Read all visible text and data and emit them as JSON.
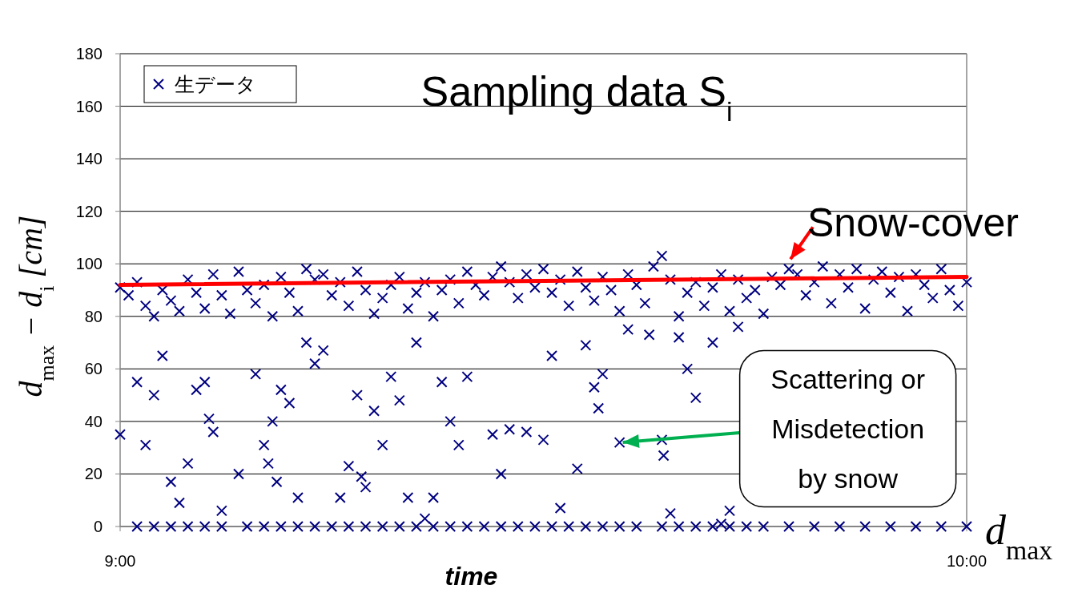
{
  "chart_data": {
    "type": "scatter",
    "title": "Sampling data S$_{i}$",
    "xlabel": "time",
    "ylabel": "d$_{max}$ − d$_{i}$ [cm]",
    "xlim": [
      9,
      10
    ],
    "xticks": [
      {
        "value": 9,
        "label": "9:00"
      },
      {
        "value": 10,
        "label": "10:00"
      }
    ],
    "ylim": [
      0,
      180
    ],
    "yticks": [
      0,
      20,
      40,
      60,
      80,
      100,
      120,
      140,
      160,
      180
    ],
    "grid": "y",
    "legend": "top left",
    "marker": "cross",
    "series": [
      {
        "name": "生データ",
        "type": "scatter",
        "color": "#000080",
        "x": [
          9.0,
          9.01,
          9.02,
          9.03,
          9.04,
          9.05,
          9.06,
          9.07,
          9.08,
          9.09,
          9.1,
          9.11,
          9.12,
          9.13,
          9.14,
          9.15,
          9.16,
          9.17,
          9.18,
          9.19,
          9.2,
          9.21,
          9.22,
          9.23,
          9.24,
          9.25,
          9.26,
          9.27,
          9.28,
          9.29,
          9.3,
          9.31,
          9.32,
          9.33,
          9.34,
          9.35,
          9.36,
          9.37,
          9.38,
          9.39,
          9.4,
          9.41,
          9.42,
          9.43,
          9.44,
          9.45,
          9.46,
          9.47,
          9.48,
          9.49,
          9.5,
          9.51,
          9.52,
          9.53,
          9.54,
          9.55,
          9.56,
          9.57,
          9.58,
          9.59,
          9.6,
          9.61,
          9.62,
          9.63,
          9.64,
          9.65,
          9.66,
          9.67,
          9.68,
          9.69,
          9.7,
          9.71,
          9.72,
          9.73,
          9.74,
          9.75,
          9.76,
          9.77,
          9.78,
          9.79,
          9.8,
          9.81,
          9.82,
          9.83,
          9.84,
          9.85,
          9.86,
          9.87,
          9.88,
          9.89,
          9.9,
          9.91,
          9.92,
          9.93,
          9.94,
          9.95,
          9.96,
          9.97,
          9.98,
          9.99,
          10.0,
          9.0,
          9.02,
          9.03,
          9.04,
          9.05,
          9.06,
          9.07,
          9.08,
          9.09,
          9.1,
          9.105,
          9.11,
          9.12,
          9.14,
          9.16,
          9.17,
          9.175,
          9.18,
          9.185,
          9.19,
          9.2,
          9.21,
          9.22,
          9.23,
          9.24,
          9.26,
          9.27,
          9.28,
          9.285,
          9.29,
          9.3,
          9.31,
          9.32,
          9.33,
          9.34,
          9.35,
          9.36,
          9.37,
          9.38,
          9.39,
          9.4,
          9.41,
          9.44,
          9.45,
          9.46,
          9.48,
          9.5,
          9.51,
          9.52,
          9.54,
          9.55,
          9.56,
          9.565,
          9.57,
          9.59,
          9.6,
          9.625,
          9.64,
          9.642,
          9.65,
          9.66,
          9.67,
          9.68,
          9.7,
          9.71,
          9.72,
          9.73,
          9.02,
          9.04,
          9.06,
          9.08,
          9.1,
          9.12,
          9.15,
          9.17,
          9.19,
          9.21,
          9.23,
          9.25,
          9.27,
          9.29,
          9.31,
          9.33,
          9.35,
          9.37,
          9.39,
          9.41,
          9.43,
          9.45,
          9.47,
          9.49,
          9.51,
          9.53,
          9.55,
          9.57,
          9.59,
          9.61,
          9.64,
          9.66,
          9.68,
          9.7,
          9.72,
          9.74,
          9.76,
          9.79,
          9.82,
          9.85,
          9.88,
          9.91,
          9.94,
          9.97,
          10.0
        ],
        "values": [
          91,
          88,
          93,
          84,
          80,
          90,
          86,
          82,
          94,
          89,
          83,
          96,
          88,
          81,
          97,
          90,
          85,
          92,
          80,
          95,
          89,
          82,
          98,
          94,
          96,
          88,
          93,
          84,
          97,
          90,
          81,
          87,
          92,
          95,
          83,
          89,
          93,
          80,
          90,
          94,
          85,
          97,
          92,
          88,
          95,
          99,
          93,
          87,
          96,
          91,
          98,
          89,
          94,
          84,
          97,
          91,
          86,
          95,
          90,
          82,
          96,
          92,
          85,
          99,
          103,
          94,
          80,
          89,
          93,
          84,
          91,
          96,
          82,
          94,
          87,
          90,
          81,
          95,
          92,
          98,
          96,
          88,
          93,
          99,
          85,
          96,
          91,
          98,
          83,
          94,
          97,
          89,
          95,
          82,
          96,
          92,
          87,
          98,
          90,
          84,
          93,
          35,
          55,
          31,
          50,
          65,
          17,
          9,
          24,
          52,
          55,
          41,
          36,
          6,
          20,
          58,
          31,
          24,
          40,
          17,
          52,
          47,
          11,
          70,
          62,
          67,
          11,
          23,
          50,
          19,
          15,
          44,
          31,
          57,
          48,
          11,
          70,
          3,
          11,
          55,
          40,
          31,
          57,
          35,
          20,
          37,
          36,
          33,
          65,
          7,
          22,
          69,
          53,
          45,
          58,
          32,
          75,
          73,
          33,
          27,
          5,
          72,
          60,
          49,
          70,
          1,
          6,
          76,
          0,
          0,
          0,
          0,
          0,
          0,
          0,
          0,
          0,
          0,
          0,
          0,
          0,
          0,
          0,
          0,
          0,
          0,
          0,
          0,
          0,
          0,
          0,
          0,
          0,
          0,
          0,
          0,
          0,
          0,
          0,
          0,
          0,
          0,
          0,
          0,
          0,
          0,
          0,
          0,
          0,
          0,
          0,
          0,
          0
        ]
      },
      {
        "type": "line",
        "marker": "none",
        "color": "#ff0000",
        "x": [
          9.0,
          10.0
        ],
        "values": [
          92,
          95
        ]
      }
    ],
    "annotations": [
      "Snow-cover",
      {
        "text": "Scattering or Misdetection by snow",
        "x": 9.59,
        "y": 32
      },
      {
        "text": "d$_{max}$",
        "x": 10,
        "y": 0
      }
    ]
  }
}
